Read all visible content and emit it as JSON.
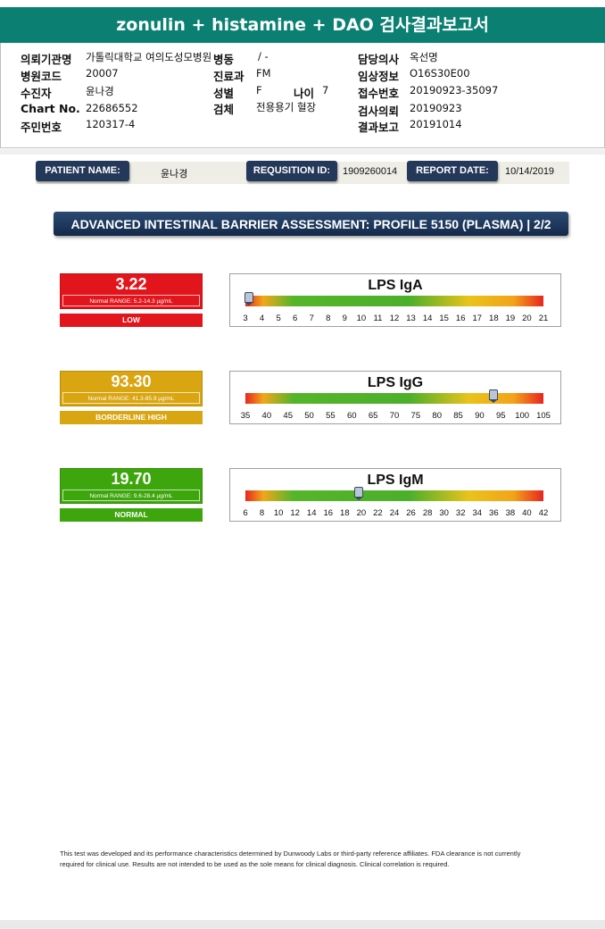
{
  "title": "zonulin + histamine + DAO 검사결과보고서",
  "info": {
    "institution_label": "의뢰기관명",
    "institution_value": "가톨릭대학교 여의도성모병원",
    "ward_label": "병동",
    "ward_value": "/ -",
    "doctor_label": "담당의사",
    "doctor_value": "옥선명",
    "hospital_code_label": "병원코드",
    "hospital_code_value": "20007",
    "dept_label": "진료과",
    "dept_value": "FM",
    "clinical_label": "임상정보",
    "clinical_value": "O16S30E00",
    "recipient_label": "수진자",
    "recipient_value": "윤나경",
    "sex_label": "성별",
    "sex_value": "F",
    "age_label": "나이",
    "age_value": "7",
    "receipt_label": "접수번호",
    "receipt_value": "20190923-35097",
    "chart_label": "Chart No.",
    "chart_value": "22686552",
    "specimen_label": "검체",
    "specimen_value": "전용용기 혈장",
    "request_label": "검사의뢰",
    "request_value": "20190923",
    "id_label": "주민번호",
    "id_value": "120317-4",
    "report_label": "결과보고",
    "report_value": "20191014"
  },
  "header": {
    "patient_label": "PATIENT NAME:",
    "patient_value": "윤나경",
    "req_label": "REQUSITION ID:",
    "req_value": "1909260014",
    "date_label": "REPORT DATE:",
    "date_value": "10/14/2019"
  },
  "section_title": "ADVANCED INTESTINAL BARRIER ASSESSMENT: PROFILE 5150 (PLASMA) | 2/2",
  "colors": {
    "low": "#e3151c",
    "borderline": "#d9a511",
    "normal": "#3ea60d",
    "teal": "#0b8072",
    "navy": "#24385a"
  },
  "results": [
    {
      "value": "3.22",
      "range": "Normal RANGE: 5.2-14.3 µg/mL",
      "status": "LOW",
      "color_key": "low",
      "name": "LPS IgA",
      "marker_value": 3.22,
      "ticks": [
        "3",
        "4",
        "5",
        "6",
        "7",
        "8",
        "9",
        "10",
        "11",
        "12",
        "13",
        "14",
        "15",
        "16",
        "17",
        "18",
        "19",
        "20",
        "21"
      ],
      "min": 3,
      "max": 21
    },
    {
      "value": "93.30",
      "range": "Normal RANGE: 41.3-85.9 µg/mL",
      "status": "BORDERLINE HIGH",
      "color_key": "borderline",
      "name": "LPS IgG",
      "marker_value": 93.3,
      "ticks": [
        "35",
        "40",
        "45",
        "50",
        "55",
        "60",
        "65",
        "70",
        "75",
        "80",
        "85",
        "90",
        "95",
        "100",
        "105"
      ],
      "min": 35,
      "max": 105
    },
    {
      "value": "19.70",
      "range": "Normal RANGE: 9.6-28.4 µg/mL",
      "status": "NORMAL",
      "color_key": "normal",
      "name": "LPS IgM",
      "marker_value": 19.7,
      "ticks": [
        "6",
        "8",
        "10",
        "12",
        "14",
        "16",
        "18",
        "20",
        "22",
        "24",
        "26",
        "28",
        "30",
        "32",
        "34",
        "36",
        "38",
        "40",
        "42"
      ],
      "min": 6,
      "max": 42
    }
  ],
  "footer": "This test was developed and its performance characteristics determined by Dunwoody Labs or third-party reference affiliates. FDA clearance is not currently required for clinical use. Results are not intended to be used as the sole means for clinical diagnosis. Clinical correlation is required."
}
